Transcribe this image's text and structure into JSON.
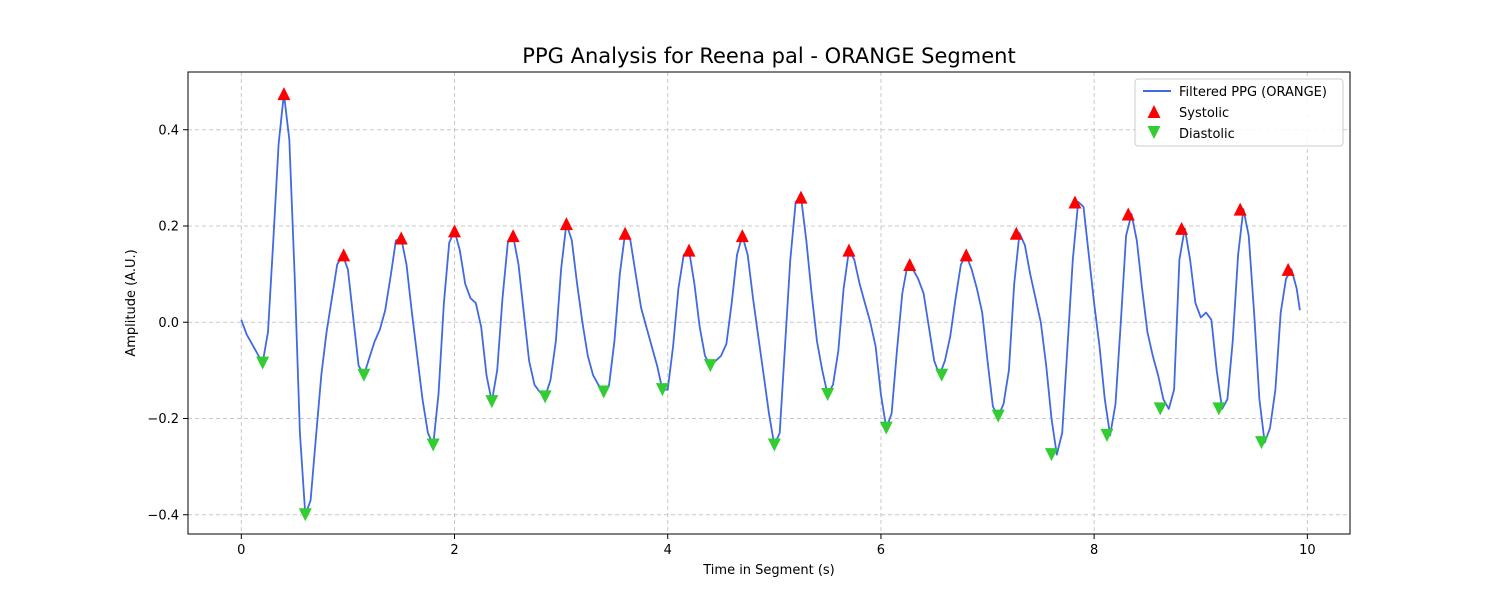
{
  "chart_data": {
    "type": "line",
    "title": "PPG Analysis for Reena pal - ORANGE Segment",
    "xlabel": "Time in Segment (s)",
    "ylabel": "Amplitude (A.U.)",
    "xlim": [
      -0.5,
      10.4
    ],
    "ylim": [
      -0.44,
      0.52
    ],
    "xticks": [
      0,
      2,
      4,
      6,
      8,
      10
    ],
    "yticks": [
      -0.4,
      -0.2,
      0.0,
      0.2,
      0.4
    ],
    "xtick_labels": [
      "0",
      "2",
      "4",
      "6",
      "8",
      "10"
    ],
    "ytick_labels": [
      "−0.4",
      "−0.2",
      "0.0",
      "0.2",
      "0.4"
    ],
    "grid": true,
    "legend_position": "top-right",
    "colors": {
      "line": "#4169e1",
      "systolic": "#ff0000",
      "diastolic": "#32cd32"
    },
    "series": [
      {
        "name": "Filtered PPG (ORANGE)",
        "kind": "line",
        "x": [
          0,
          0.05,
          0.1,
          0.15,
          0.2,
          0.25,
          0.3,
          0.35,
          0.4,
          0.45,
          0.5,
          0.55,
          0.6,
          0.65,
          0.7,
          0.75,
          0.8,
          0.85,
          0.9,
          0.95,
          1.0,
          1.05,
          1.1,
          1.15,
          1.2,
          1.25,
          1.3,
          1.35,
          1.4,
          1.45,
          1.5,
          1.55,
          1.6,
          1.65,
          1.7,
          1.75,
          1.8,
          1.85,
          1.9,
          1.95,
          2.0,
          2.05,
          2.1,
          2.15,
          2.2,
          2.25,
          2.3,
          2.35,
          2.4,
          2.45,
          2.5,
          2.55,
          2.6,
          2.65,
          2.7,
          2.75,
          2.8,
          2.85,
          2.9,
          2.95,
          3.0,
          3.05,
          3.1,
          3.15,
          3.2,
          3.25,
          3.3,
          3.35,
          3.4,
          3.45,
          3.5,
          3.55,
          3.6,
          3.65,
          3.7,
          3.75,
          3.8,
          3.85,
          3.9,
          3.95,
          4.0,
          4.05,
          4.1,
          4.15,
          4.2,
          4.25,
          4.3,
          4.35,
          4.4,
          4.45,
          4.5,
          4.55,
          4.6,
          4.65,
          4.7,
          4.75,
          4.8,
          4.85,
          4.9,
          4.95,
          5.0,
          5.05,
          5.1,
          5.15,
          5.2,
          5.25,
          5.3,
          5.35,
          5.4,
          5.45,
          5.5,
          5.55,
          5.6,
          5.65,
          5.7,
          5.75,
          5.8,
          5.85,
          5.9,
          5.95,
          6.0,
          6.05,
          6.1,
          6.15,
          6.2,
          6.25,
          6.3,
          6.35,
          6.4,
          6.45,
          6.5,
          6.55,
          6.6,
          6.65,
          6.7,
          6.75,
          6.8,
          6.85,
          6.9,
          6.95,
          7.0,
          7.05,
          7.1,
          7.15,
          7.2,
          7.25,
          7.3,
          7.35,
          7.4,
          7.45,
          7.5,
          7.55,
          7.6,
          7.65,
          7.7,
          7.75,
          7.8,
          7.85,
          7.9,
          7.95,
          8.0,
          8.05,
          8.1,
          8.15,
          8.2,
          8.25,
          8.3,
          8.35,
          8.4,
          8.45,
          8.5,
          8.55,
          8.6,
          8.65,
          8.7,
          8.75,
          8.8,
          8.85,
          8.9,
          8.95,
          9.0,
          9.05,
          9.1,
          9.15,
          9.2,
          9.25,
          9.3,
          9.35,
          9.4,
          9.45,
          9.5,
          9.55,
          9.6,
          9.65,
          9.7,
          9.75,
          9.8,
          9.85,
          9.9,
          9.93
        ],
        "values": [
          0.005,
          -0.025,
          -0.045,
          -0.065,
          -0.085,
          -0.02,
          0.17,
          0.37,
          0.475,
          0.38,
          0.1,
          -0.23,
          -0.4,
          -0.37,
          -0.24,
          -0.11,
          -0.02,
          0.05,
          0.12,
          0.14,
          0.11,
          0.01,
          -0.09,
          -0.11,
          -0.075,
          -0.04,
          -0.015,
          0.025,
          0.095,
          0.17,
          0.175,
          0.12,
          0.02,
          -0.07,
          -0.16,
          -0.23,
          -0.255,
          -0.15,
          0.04,
          0.165,
          0.19,
          0.15,
          0.08,
          0.05,
          0.04,
          -0.01,
          -0.11,
          -0.165,
          -0.1,
          0.05,
          0.165,
          0.18,
          0.12,
          0.02,
          -0.08,
          -0.13,
          -0.145,
          -0.155,
          -0.12,
          -0.04,
          0.11,
          0.205,
          0.17,
          0.08,
          0.0,
          -0.07,
          -0.11,
          -0.13,
          -0.145,
          -0.13,
          -0.04,
          0.1,
          0.185,
          0.17,
          0.1,
          0.03,
          -0.01,
          -0.05,
          -0.09,
          -0.14,
          -0.14,
          -0.05,
          0.07,
          0.14,
          0.15,
          0.08,
          -0.01,
          -0.07,
          -0.09,
          -0.08,
          -0.07,
          -0.045,
          0.04,
          0.14,
          0.18,
          0.14,
          0.05,
          -0.03,
          -0.11,
          -0.19,
          -0.255,
          -0.23,
          -0.05,
          0.13,
          0.25,
          0.26,
          0.17,
          0.06,
          -0.04,
          -0.1,
          -0.15,
          -0.13,
          -0.06,
          0.07,
          0.15,
          0.13,
          0.08,
          0.04,
          0.0,
          -0.05,
          -0.15,
          -0.22,
          -0.19,
          -0.06,
          0.06,
          0.12,
          0.11,
          0.09,
          0.06,
          -0.01,
          -0.08,
          -0.11,
          -0.08,
          -0.03,
          0.05,
          0.12,
          0.14,
          0.11,
          0.07,
          0.02,
          -0.08,
          -0.175,
          -0.195,
          -0.17,
          -0.1,
          0.08,
          0.185,
          0.16,
          0.1,
          0.05,
          0.0,
          -0.09,
          -0.2,
          -0.275,
          -0.23,
          -0.05,
          0.13,
          0.25,
          0.24,
          0.14,
          0.04,
          -0.05,
          -0.16,
          -0.235,
          -0.17,
          0.0,
          0.18,
          0.225,
          0.17,
          0.07,
          -0.02,
          -0.07,
          -0.11,
          -0.16,
          -0.18,
          -0.14,
          0.13,
          0.195,
          0.13,
          0.04,
          0.01,
          0.02,
          0.005,
          -0.1,
          -0.18,
          -0.16,
          -0.04,
          0.14,
          0.235,
          0.18,
          0.02,
          -0.16,
          -0.25,
          -0.22,
          -0.14,
          0.02,
          0.09,
          0.11,
          0.07,
          0.025
        ]
      },
      {
        "name": "Systolic",
        "kind": "marker-up",
        "x": [
          0.4,
          0.96,
          1.5,
          2.0,
          2.55,
          3.05,
          3.6,
          4.2,
          4.7,
          5.25,
          5.7,
          6.27,
          6.8,
          7.27,
          7.82,
          8.32,
          8.82,
          9.37,
          9.82
        ],
        "values": [
          0.475,
          0.14,
          0.175,
          0.19,
          0.18,
          0.205,
          0.185,
          0.15,
          0.18,
          0.26,
          0.15,
          0.12,
          0.14,
          0.185,
          0.25,
          0.225,
          0.195,
          0.235,
          0.11
        ]
      },
      {
        "name": "Diastolic",
        "kind": "marker-down",
        "x": [
          0.2,
          0.6,
          1.15,
          1.8,
          2.35,
          2.85,
          3.4,
          3.95,
          4.4,
          5.0,
          5.5,
          6.05,
          6.57,
          7.1,
          7.6,
          8.12,
          8.62,
          9.17,
          9.57
        ],
        "values": [
          -0.085,
          -0.4,
          -0.11,
          -0.255,
          -0.165,
          -0.155,
          -0.145,
          -0.14,
          -0.09,
          -0.255,
          -0.15,
          -0.22,
          -0.11,
          -0.195,
          -0.275,
          -0.235,
          -0.18,
          -0.18,
          -0.25
        ]
      }
    ]
  }
}
